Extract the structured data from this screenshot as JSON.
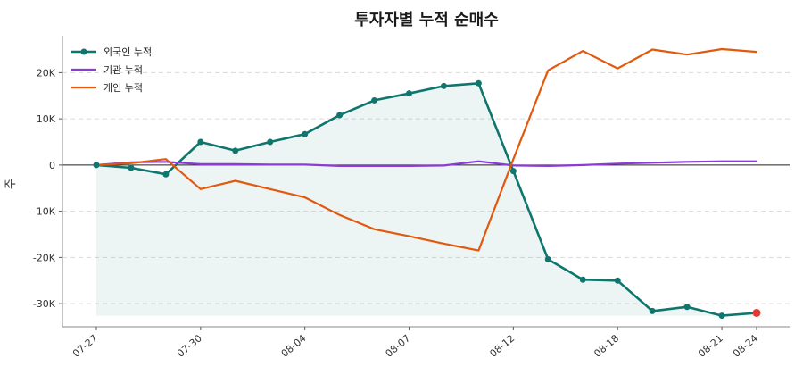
{
  "chart_data": {
    "type": "line",
    "title": "투자자별 누적 순매수",
    "ylabel": "주",
    "xlabel": "",
    "ylim": [
      -35000,
      28000
    ],
    "yticks": [
      -30000,
      -20000,
      -10000,
      0,
      10000,
      20000
    ],
    "ytick_labels": [
      "-30K",
      "-20K",
      "-10K",
      "0",
      "10K",
      "20K"
    ],
    "x": [
      "07-27",
      "07-28",
      "07-29",
      "07-30",
      "07-31",
      "08-03",
      "08-04",
      "08-05",
      "08-06",
      "08-07",
      "08-10",
      "08-11",
      "08-12",
      "08-13",
      "08-14",
      "08-18",
      "08-19",
      "08-20",
      "08-21",
      "08-24"
    ],
    "xtick_labels": [
      "07-27",
      "07-30",
      "08-04",
      "08-07",
      "08-12",
      "08-18",
      "08-21",
      "08-24"
    ],
    "grid": true,
    "legend_position": "top-left",
    "series": [
      {
        "name": "외국인 누적",
        "color": "#0f766e",
        "markers": true,
        "fill": true,
        "values": [
          0,
          -600,
          -2000,
          5000,
          3100,
          5000,
          6700,
          10800,
          14000,
          15500,
          17100,
          17700,
          -1300,
          -20400,
          -24800,
          -25000,
          -31600,
          -30700,
          -32600,
          -32000
        ]
      },
      {
        "name": "기관 누적",
        "color": "#8b3bd6",
        "markers": false,
        "fill": false,
        "values": [
          0,
          600,
          700,
          200,
          200,
          100,
          100,
          -200,
          -200,
          -200,
          -100,
          800,
          -100,
          -200,
          0,
          300,
          500,
          700,
          800,
          800
        ]
      },
      {
        "name": "개인 누적",
        "color": "#e4580b",
        "markers": false,
        "fill": false,
        "values": [
          0,
          400,
          1300,
          -5200,
          -3400,
          -5200,
          -7000,
          -10800,
          -13900,
          -15400,
          -17000,
          -18500,
          1300,
          20500,
          24700,
          20900,
          25000,
          23900,
          25100,
          24500
        ]
      }
    ],
    "last_point_color": "#e53935",
    "zero_line_color": "#222222"
  }
}
